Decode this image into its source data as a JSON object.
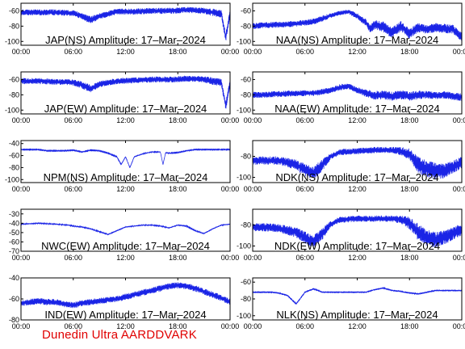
{
  "figure": {
    "credit": "Dunedin Ultra AARDDVARK",
    "line_color": "#1a24e6",
    "credit_color": "#e00000"
  },
  "chart_data": [
    {
      "type": "line",
      "title": "JAP(NS) Amplitude: 17–Mar–2024",
      "xticks": [
        "00:00",
        "06:00",
        "12:00",
        "18:00",
        "00:00"
      ],
      "xlim": [
        0,
        24
      ],
      "ylim": [
        -105,
        -50
      ],
      "yticks": [
        -60,
        -80,
        -100
      ],
      "x": [
        0,
        2,
        4,
        6,
        7,
        8,
        9,
        10,
        11,
        13,
        15,
        17,
        19,
        20,
        21,
        22,
        23,
        23.5,
        24
      ],
      "y": [
        -62,
        -62,
        -62,
        -63,
        -67,
        -72,
        -67,
        -64,
        -61,
        -61,
        -60,
        -60,
        -59,
        -59,
        -60,
        -62,
        -64,
        -95,
        -62
      ],
      "band": [
        4,
        4,
        4,
        4,
        4,
        5,
        4,
        4,
        4,
        4,
        4,
        4,
        4,
        4,
        4,
        5,
        5,
        6,
        5
      ]
    },
    {
      "type": "line",
      "title": "NAA(NS) Amplitude: 17–Mar–2024",
      "xticks": [
        "00:00",
        "06:00",
        "12:00",
        "18:00",
        "00:00"
      ],
      "xlim": [
        0,
        24
      ],
      "ylim": [
        -105,
        -50
      ],
      "yticks": [
        -60,
        -80,
        -100
      ],
      "x": [
        0,
        1,
        3,
        5,
        7,
        8,
        9,
        10,
        11,
        12,
        13,
        13.5,
        14,
        15,
        16,
        17,
        18,
        19,
        20,
        21,
        22,
        23,
        24
      ],
      "y": [
        -80,
        -79,
        -78,
        -77,
        -74,
        -70,
        -66,
        -63,
        -61,
        -67,
        -75,
        -84,
        -78,
        -81,
        -89,
        -80,
        -90,
        -82,
        -84,
        -82,
        -83,
        -84,
        -95
      ],
      "band": [
        4,
        4,
        4,
        4,
        4,
        4,
        3,
        3,
        3,
        4,
        5,
        6,
        6,
        7,
        7,
        7,
        7,
        6,
        6,
        6,
        6,
        6,
        6
      ]
    },
    {
      "type": "line",
      "title": "JAP(EW) Amplitude: 17–Mar–2024",
      "xticks": [
        "00:00",
        "06:00",
        "12:00",
        "18:00",
        "00:00"
      ],
      "xlim": [
        0,
        24
      ],
      "ylim": [
        -105,
        -50
      ],
      "yticks": [
        -60,
        -80,
        -100
      ],
      "x": [
        0,
        2,
        4,
        6,
        7,
        8,
        9,
        10,
        11,
        13,
        15,
        17,
        19,
        20,
        21,
        22,
        23,
        23.5,
        24
      ],
      "y": [
        -62,
        -62,
        -63,
        -64,
        -67,
        -72,
        -66,
        -64,
        -62,
        -61,
        -60,
        -60,
        -59,
        -59,
        -60,
        -62,
        -64,
        -95,
        -64
      ],
      "band": [
        4,
        4,
        4,
        4,
        5,
        5,
        4,
        4,
        4,
        4,
        4,
        4,
        4,
        4,
        4,
        5,
        5,
        6,
        5
      ]
    },
    {
      "type": "line",
      "title": "NAA(EW) Amplitude: 17–Mar–2024",
      "xticks": [
        "00:00",
        "06:00",
        "12:00",
        "18:00",
        "00:00"
      ],
      "xlim": [
        0,
        24
      ],
      "ylim": [
        -105,
        -50
      ],
      "yticks": [
        -60,
        -80,
        -100
      ],
      "x": [
        0,
        1,
        3,
        5,
        7,
        8,
        9,
        10,
        11,
        12,
        13,
        14,
        15,
        16,
        17,
        18,
        19,
        20,
        21,
        22,
        23,
        24
      ],
      "y": [
        -80,
        -80,
        -79,
        -78,
        -78,
        -76,
        -74,
        -70,
        -69,
        -74,
        -78,
        -81,
        -80,
        -82,
        -80,
        -82,
        -80,
        -80,
        -81,
        -80,
        -82,
        -83
      ],
      "band": [
        4,
        4,
        4,
        4,
        4,
        4,
        4,
        4,
        4,
        4,
        5,
        6,
        6,
        6,
        6,
        6,
        6,
        5,
        5,
        5,
        5,
        5
      ]
    },
    {
      "type": "line",
      "title": "NPM(NS) Amplitude: 17–Mar–2024",
      "xticks": [
        "00:00",
        "06:00",
        "12:00",
        "18:00",
        "00:00"
      ],
      "xlim": [
        0,
        24
      ],
      "ylim": [
        -105,
        -35
      ],
      "yticks": [
        -40,
        -60,
        -80,
        -100
      ],
      "x": [
        0,
        1,
        2,
        3,
        5,
        6,
        7,
        8,
        9,
        10,
        11,
        11.5,
        12,
        12.5,
        13,
        14,
        15,
        16,
        16.3,
        16.6,
        17,
        18,
        19,
        20,
        21,
        22,
        23,
        24
      ],
      "y": [
        -50,
        -50,
        -50,
        -52,
        -52,
        -51,
        -54,
        -51,
        -52,
        -56,
        -62,
        -75,
        -62,
        -80,
        -62,
        -57,
        -54,
        -54,
        -75,
        -55,
        -56,
        -55,
        -52,
        -50,
        -50,
        -50,
        -50,
        -50
      ],
      "band": [
        0.6,
        0.6,
        0.6,
        0.6,
        0.6,
        0.6,
        0.6,
        0.6,
        0.6,
        0.6,
        0.8,
        1,
        1,
        1,
        1,
        0.8,
        0.8,
        0.8,
        0.8,
        0.8,
        0.8,
        0.6,
        0.6,
        0.6,
        0.6,
        0.6,
        0.6,
        0.6
      ]
    },
    {
      "type": "line",
      "title": "NDK(NS) Amplitude: 17–Mar–2024",
      "xticks": [
        "00:00",
        "06:00",
        "12:00",
        "18:00",
        "00:00"
      ],
      "xlim": [
        0,
        24
      ],
      "ylim": [
        -105,
        -65
      ],
      "yticks": [
        -80,
        -100
      ],
      "x": [
        0,
        1,
        3,
        5,
        6,
        7,
        8,
        9,
        10,
        12,
        14,
        16,
        17,
        18,
        19,
        20,
        21,
        22,
        23,
        24
      ],
      "y": [
        -84,
        -84,
        -84,
        -88,
        -93,
        -96,
        -88,
        -80,
        -76,
        -75,
        -74,
        -74,
        -75,
        -78,
        -88,
        -92,
        -94,
        -94,
        -90,
        -86
      ],
      "band": [
        4,
        4,
        4,
        5,
        6,
        6,
        6,
        3,
        3,
        3,
        3,
        3,
        4,
        6,
        8,
        8,
        8,
        7,
        6,
        6
      ]
    },
    {
      "type": "line",
      "title": "NWC(EW) Amplitude: 17–Mar–2024",
      "xticks": [
        "00:00",
        "06:00",
        "12:00",
        "18:00",
        "00:00"
      ],
      "xlim": [
        0,
        24
      ],
      "ylim": [
        -70,
        -25
      ],
      "yticks": [
        -30,
        -40,
        -50,
        -60,
        -70
      ],
      "x": [
        0,
        2,
        4,
        5.5,
        6,
        7,
        8,
        9,
        10,
        11,
        12,
        13,
        14,
        15,
        16,
        17,
        18,
        19,
        20,
        21,
        22,
        23,
        24
      ],
      "y": [
        -41,
        -40,
        -41,
        -42,
        -43,
        -44,
        -46,
        -49,
        -52,
        -48,
        -44,
        -43,
        -42,
        -42,
        -43,
        -45,
        -42,
        -43,
        -48,
        -51,
        -46,
        -42,
        -41
      ],
      "band": [
        0.6,
        0.6,
        0.6,
        0.6,
        0.6,
        0.6,
        0.6,
        0.6,
        0.6,
        0.6,
        0.6,
        0.6,
        0.6,
        0.6,
        0.6,
        0.6,
        0.6,
        0.6,
        0.6,
        0.6,
        0.6,
        0.6,
        0.6
      ]
    },
    {
      "type": "line",
      "title": "NDK(EW) Amplitude: 17–Mar–2024",
      "xticks": [
        "00:00",
        "06:00",
        "12:00",
        "18:00",
        "00:00"
      ],
      "xlim": [
        0,
        24
      ],
      "ylim": [
        -105,
        -65
      ],
      "yticks": [
        -80,
        -100
      ],
      "x": [
        0,
        1,
        3,
        5,
        6,
        7,
        8,
        9,
        10,
        12,
        14,
        16,
        17,
        18,
        19,
        20,
        21,
        22,
        23,
        24
      ],
      "y": [
        -82,
        -82,
        -83,
        -87,
        -92,
        -96,
        -88,
        -79,
        -75,
        -74,
        -74,
        -74,
        -75,
        -78,
        -87,
        -92,
        -94,
        -92,
        -88,
        -84
      ],
      "band": [
        4,
        4,
        4,
        5,
        6,
        6,
        6,
        3,
        3,
        3,
        3,
        3,
        4,
        6,
        8,
        8,
        8,
        7,
        6,
        6
      ]
    },
    {
      "type": "line",
      "title": "IND(EW) Amplitude: 17–Mar–2024",
      "xticks": [
        "00:00",
        "06:00",
        "12:00",
        "18:00",
        "00:00"
      ],
      "xlim": [
        0,
        24
      ],
      "ylim": [
        -80,
        -40
      ],
      "yticks": [
        -40,
        -60,
        -80
      ],
      "x": [
        0,
        1,
        2,
        3,
        4,
        5,
        6,
        7,
        8,
        9,
        10,
        11,
        12,
        13,
        14,
        15,
        16,
        17,
        18,
        19,
        20,
        21,
        22,
        23,
        24
      ],
      "y": [
        -64,
        -63,
        -62,
        -63,
        -63,
        -65,
        -66,
        -64,
        -63,
        -62,
        -61,
        -60,
        -58,
        -56,
        -54,
        -52,
        -50,
        -48,
        -47,
        -48,
        -50,
        -53,
        -56,
        -59,
        -63
      ],
      "band": [
        3,
        3,
        3,
        3,
        3,
        3,
        3,
        3,
        3,
        3,
        3,
        3,
        3,
        3,
        3,
        3,
        3,
        3,
        3,
        3,
        3,
        3,
        3,
        3,
        3
      ]
    },
    {
      "type": "line",
      "title": "NLK(NS) Amplitude: 17–Mar–2024",
      "xticks": [
        "00:00",
        "06:00",
        "12:00",
        "18:00",
        "00:00"
      ],
      "xlim": [
        0,
        24
      ],
      "ylim": [
        -105,
        -55
      ],
      "yticks": [
        -60,
        -80,
        -100
      ],
      "x": [
        0,
        1,
        2,
        3,
        4,
        5,
        6,
        7,
        8,
        9,
        10,
        11,
        12,
        13,
        14,
        15,
        16,
        17,
        18,
        19,
        20,
        21,
        22,
        23,
        24
      ],
      "y": [
        -72,
        -72,
        -72,
        -73,
        -76,
        -86,
        -72,
        -68,
        -72,
        -72,
        -72,
        -72,
        -72,
        -72,
        -69,
        -67,
        -70,
        -71,
        -73,
        -74,
        -72,
        -70,
        -70,
        -70,
        -70
      ],
      "band": [
        1,
        1,
        1,
        1,
        1,
        1,
        1,
        1,
        1,
        1,
        1,
        1,
        1,
        1,
        1,
        1,
        1,
        1,
        1,
        1,
        1,
        1,
        1,
        1,
        1
      ]
    }
  ]
}
